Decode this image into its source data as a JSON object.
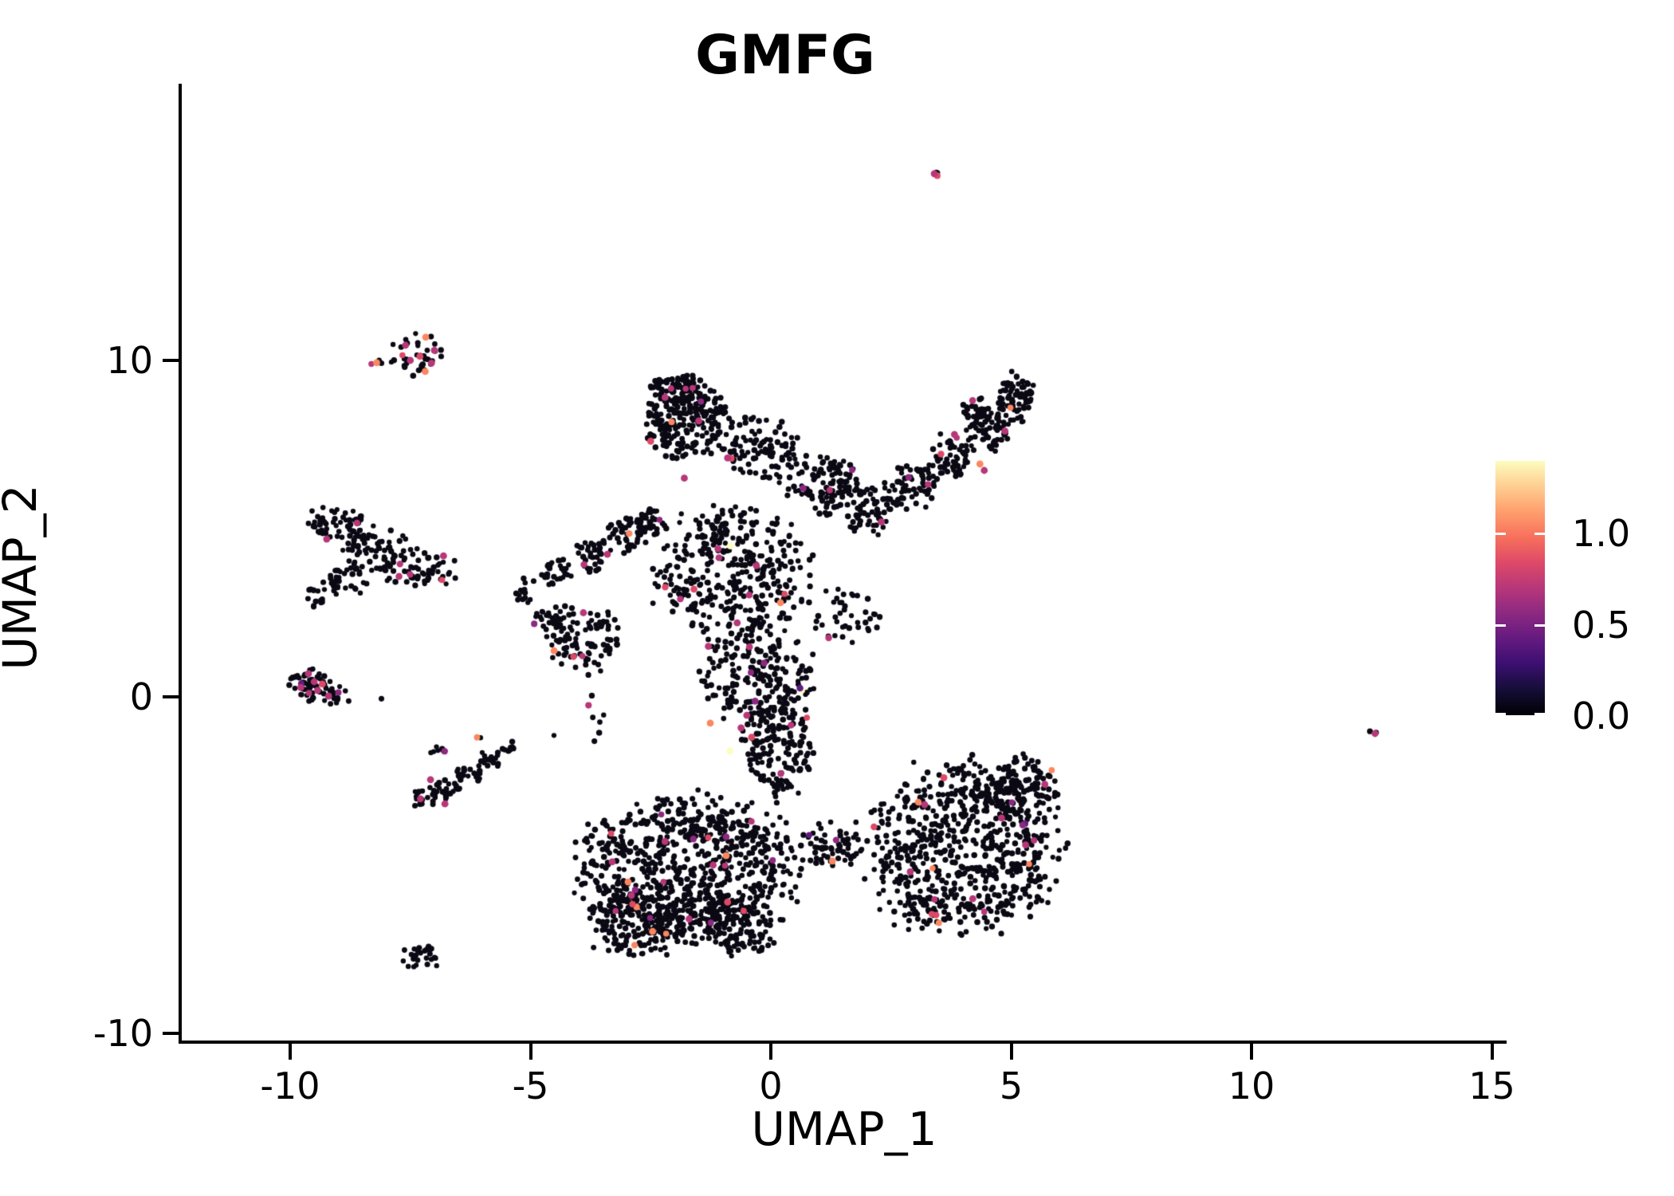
{
  "figure": {
    "background": "#ffffff"
  },
  "chart_data": {
    "type": "scatter",
    "title": "GMFG",
    "xlabel": "UMAP_1",
    "ylabel": "UMAP_2",
    "x_ticks": {
      "values": [
        -10,
        -5,
        0,
        5,
        10,
        15
      ],
      "labels": [
        "-10",
        "-5",
        "0",
        "5",
        "10",
        "15"
      ]
    },
    "y_ticks": {
      "values": [
        10,
        0,
        -10
      ],
      "labels": [
        "10",
        "0",
        "-10"
      ]
    },
    "x_range": [
      -12.3,
      15.3
    ],
    "y_range": [
      -10.2,
      18.2
    ],
    "grid": false,
    "point_color": "#0b0913",
    "colored_fraction": 0.022,
    "colored_palette": [
      {
        "color": "#b73779",
        "weight": 0.45
      },
      {
        "color": "#8c2981",
        "weight": 0.18
      },
      {
        "color": "#de4968",
        "weight": 0.14
      },
      {
        "color": "#fb8761",
        "weight": 0.14
      },
      {
        "color": "#641a80",
        "weight": 0.06
      },
      {
        "color": "#fcfdbf",
        "weight": 0.03
      }
    ],
    "clusters": [
      {
        "name": "top-speck",
        "cx": 3.44,
        "cy": 15.5,
        "rx": 0.09,
        "ry": 0.1,
        "n": 3
      },
      {
        "name": "topleft-main",
        "cx": -7.38,
        "cy": 10.2,
        "rx": 0.5,
        "ry": 0.6,
        "n": 34
      },
      {
        "name": "topleft-west",
        "cx": -8.2,
        "cy": 9.93,
        "rx": 0.12,
        "ry": 0.1,
        "n": 3
      },
      {
        "name": "leftmid-a",
        "cx": -9.07,
        "cy": 5.19,
        "rx": 0.6,
        "ry": 0.52,
        "n": 50
      },
      {
        "name": "leftmid-b",
        "cx": -8.24,
        "cy": 4.36,
        "rx": 0.78,
        "ry": 0.66,
        "n": 70
      },
      {
        "name": "leftmid-c",
        "cx": -7.41,
        "cy": 3.77,
        "rx": 0.78,
        "ry": 0.6,
        "n": 60
      },
      {
        "name": "leftmid-d",
        "cx": -8.9,
        "cy": 3.41,
        "rx": 0.45,
        "ry": 0.45,
        "n": 28
      },
      {
        "name": "leftmid-tail",
        "cx": -9.49,
        "cy": 2.99,
        "rx": 0.27,
        "ry": 0.3,
        "n": 14
      },
      {
        "name": "left-zero",
        "cx": -9.65,
        "cy": 0.33,
        "rx": 0.45,
        "ry": 0.45,
        "n": 48
      },
      {
        "name": "left-zero-e",
        "cx": -8.99,
        "cy": 0.05,
        "rx": 0.32,
        "ry": 0.26,
        "n": 14
      },
      {
        "name": "left-zero-dot",
        "cx": -8.12,
        "cy": -0.09,
        "rx": 0.05,
        "ry": 0.05,
        "n": 1
      },
      {
        "name": "lowleft-a",
        "cx": -7.24,
        "cy": -2.99,
        "rx": 0.28,
        "ry": 0.28,
        "n": 18
      },
      {
        "name": "lowleft-b",
        "cx": -6.74,
        "cy": -2.75,
        "rx": 0.33,
        "ry": 0.3,
        "n": 24
      },
      {
        "name": "lowleft-c",
        "cx": -6.25,
        "cy": -2.27,
        "rx": 0.3,
        "ry": 0.3,
        "n": 20
      },
      {
        "name": "lowleft-d",
        "cx": -5.83,
        "cy": -1.8,
        "rx": 0.26,
        "ry": 0.26,
        "n": 16
      },
      {
        "name": "lowleft-e",
        "cx": -5.47,
        "cy": -1.47,
        "rx": 0.19,
        "ry": 0.19,
        "n": 9
      },
      {
        "name": "lowleft-sat",
        "cx": -6.94,
        "cy": -1.59,
        "rx": 0.15,
        "ry": 0.14,
        "n": 7
      },
      {
        "name": "lowleft-dots",
        "cx": -6.05,
        "cy": -1.21,
        "rx": 0.12,
        "ry": 0.08,
        "n": 2
      },
      {
        "name": "bottom-tiny",
        "cx": -7.19,
        "cy": -7.73,
        "rx": 0.5,
        "ry": 0.34,
        "n": 26
      },
      {
        "name": "right-speck",
        "cx": 12.5,
        "cy": -1.0,
        "rx": 0.1,
        "ry": 0.12,
        "n": 2
      },
      {
        "name": "knob",
        "cx": -1.76,
        "cy": 8.27,
        "rx": 0.78,
        "ry": 1.15,
        "n": 240
      },
      {
        "name": "knob-top",
        "cx": -2.01,
        "cy": 9.15,
        "rx": 0.52,
        "ry": 0.38,
        "n": 50
      },
      {
        "name": "knob-east",
        "cx": -0.27,
        "cy": 7.44,
        "rx": 0.78,
        "ry": 0.97,
        "n": 95
      },
      {
        "name": "bridge",
        "cx": 1.06,
        "cy": 6.26,
        "rx": 0.85,
        "ry": 0.85,
        "n": 110
      },
      {
        "name": "wing-a",
        "cx": 2.06,
        "cy": 5.55,
        "rx": 0.52,
        "ry": 0.72,
        "n": 55
      },
      {
        "name": "wing-b",
        "cx": 2.89,
        "cy": 6.26,
        "rx": 0.52,
        "ry": 0.72,
        "n": 60
      },
      {
        "name": "wing-c",
        "cx": 3.72,
        "cy": 7.09,
        "rx": 0.49,
        "ry": 0.68,
        "n": 60
      },
      {
        "name": "wing-d",
        "cx": 4.55,
        "cy": 7.91,
        "rx": 0.44,
        "ry": 0.62,
        "n": 60
      },
      {
        "name": "wing-tip",
        "cx": 5.08,
        "cy": 8.93,
        "rx": 0.38,
        "ry": 0.68,
        "n": 70
      },
      {
        "name": "wing-top",
        "cx": 4.3,
        "cy": 8.5,
        "rx": 0.32,
        "ry": 0.42,
        "n": 26
      },
      {
        "name": "arm-a",
        "cx": -5.08,
        "cy": 3.18,
        "rx": 0.27,
        "ry": 0.37,
        "n": 14
      },
      {
        "name": "arm-b",
        "cx": -4.42,
        "cy": 3.65,
        "rx": 0.35,
        "ry": 0.47,
        "n": 30
      },
      {
        "name": "arm-c",
        "cx": -3.67,
        "cy": 4.24,
        "rx": 0.39,
        "ry": 0.52,
        "n": 36
      },
      {
        "name": "arm-d",
        "cx": -2.96,
        "cy": 4.83,
        "rx": 0.39,
        "ry": 0.52,
        "n": 42
      },
      {
        "name": "arm-e",
        "cx": -2.46,
        "cy": 5.19,
        "rx": 0.35,
        "ry": 0.47,
        "n": 36
      },
      {
        "name": "west-lobe",
        "cx": -3.92,
        "cy": 1.75,
        "rx": 0.78,
        "ry": 0.97,
        "n": 90
      },
      {
        "name": "west-lobe-n",
        "cx": -4.58,
        "cy": 2.27,
        "rx": 0.35,
        "ry": 0.47,
        "n": 24
      },
      {
        "name": "central",
        "cx": -0.76,
        "cy": 3.65,
        "rx": 1.55,
        "ry": 1.95,
        "n": 380
      },
      {
        "name": "central-south",
        "cx": -0.27,
        "cy": 0.57,
        "rx": 1.2,
        "ry": 1.2,
        "n": 190
      },
      {
        "name": "column",
        "cx": 0.15,
        "cy": -1.45,
        "rx": 0.68,
        "ry": 1.35,
        "n": 160
      },
      {
        "name": "bl-mass",
        "cx": -1.76,
        "cy": -5.12,
        "rx": 2.2,
        "ry": 2.05,
        "n": 760
      },
      {
        "name": "bl-south",
        "cx": -2.76,
        "cy": -6.78,
        "rx": 1.05,
        "ry": 0.97,
        "n": 160
      },
      {
        "name": "bl-southeast",
        "cx": -0.76,
        "cy": -6.78,
        "rx": 0.85,
        "ry": 0.85,
        "n": 110
      },
      {
        "name": "neck",
        "cx": 1.23,
        "cy": -4.41,
        "rx": 0.68,
        "ry": 0.6,
        "n": 60
      },
      {
        "name": "br-mass",
        "cx": 3.89,
        "cy": -4.53,
        "rx": 1.95,
        "ry": 2.4,
        "n": 680
      },
      {
        "name": "br-north",
        "cx": 5.22,
        "cy": -2.75,
        "rx": 0.68,
        "ry": 0.97,
        "n": 110
      },
      {
        "name": "mid-east",
        "cx": 1.56,
        "cy": 2.46,
        "rx": 0.68,
        "ry": 0.97,
        "n": 40
      },
      {
        "name": "sparse-west-gap",
        "cx": -3.9,
        "cy": -0.6,
        "rx": 0.7,
        "ry": 0.8,
        "n": 8
      },
      {
        "name": "sparse-south-gap",
        "cx": 0.3,
        "cy": -3.3,
        "rx": 0.9,
        "ry": 0.7,
        "n": 10
      }
    ],
    "highlight_points": [
      {
        "x": 3.4,
        "y": 15.55,
        "color": "#b73779"
      },
      {
        "x": -8.2,
        "y": 9.93,
        "color": "#fb8761"
      },
      {
        "x": -7.18,
        "y": 10.69,
        "color": "#fb8761"
      },
      {
        "x": -7.19,
        "y": 9.67,
        "color": "#fb8761"
      },
      {
        "x": -7.6,
        "y": 10.45,
        "color": "#b73779"
      },
      {
        "x": -7.0,
        "y": 10.3,
        "color": "#b73779"
      },
      {
        "x": -7.5,
        "y": 10.0,
        "color": "#b73779"
      },
      {
        "x": -7.06,
        "y": 9.92,
        "color": "#b73779"
      },
      {
        "x": -7.3,
        "y": 10.12,
        "color": "#de4968"
      },
      {
        "x": -9.24,
        "y": 4.69,
        "color": "#b73779"
      },
      {
        "x": -6.81,
        "y": 4.19,
        "color": "#b73779"
      },
      {
        "x": -9.62,
        "y": 0.69,
        "color": "#b73779"
      },
      {
        "x": -9.5,
        "y": 0.45,
        "color": "#b73779"
      },
      {
        "x": -9.78,
        "y": 0.28,
        "color": "#b73779"
      },
      {
        "x": -9.43,
        "y": 0.19,
        "color": "#b73779"
      },
      {
        "x": -9.2,
        "y": 0.02,
        "color": "#b73779"
      },
      {
        "x": -9.33,
        "y": 0.38,
        "color": "#de4968"
      },
      {
        "x": -7.08,
        "y": -2.46,
        "color": "#b73779"
      },
      {
        "x": -7.29,
        "y": -3.03,
        "color": "#b73779"
      },
      {
        "x": -6.78,
        "y": -3.18,
        "color": "#b73779"
      },
      {
        "x": 12.57,
        "y": -1.09,
        "color": "#b73779"
      },
      {
        "x": 4.35,
        "y": 6.92,
        "color": "#fb8761"
      },
      {
        "x": 3.82,
        "y": 7.8,
        "color": "#b73779"
      },
      {
        "x": 4.87,
        "y": 7.9,
        "color": "#b73779"
      },
      {
        "x": 4.44,
        "y": 6.73,
        "color": "#b73779"
      },
      {
        "x": 2.3,
        "y": 5.2,
        "color": "#b73779"
      },
      {
        "x": -2.2,
        "y": 8.9,
        "color": "#b73779"
      },
      {
        "x": -1.5,
        "y": 8.2,
        "color": "#b73779"
      },
      {
        "x": -2.5,
        "y": 7.6,
        "color": "#de4968"
      },
      {
        "x": -0.9,
        "y": 7.1,
        "color": "#b73779"
      },
      {
        "x": -1.8,
        "y": 6.5,
        "color": "#b73779"
      },
      {
        "x": -1.1,
        "y": 4.4,
        "color": "#b73779"
      },
      {
        "x": -0.3,
        "y": 3.9,
        "color": "#b73779"
      },
      {
        "x": -1.6,
        "y": 3.2,
        "color": "#de4968"
      },
      {
        "x": 0.2,
        "y": 2.8,
        "color": "#fb8761"
      },
      {
        "x": -0.7,
        "y": 2.2,
        "color": "#b73779"
      },
      {
        "x": -1.3,
        "y": 1.5,
        "color": "#b73779"
      },
      {
        "x": -4.51,
        "y": 1.37,
        "color": "#fb8761"
      },
      {
        "x": -3.9,
        "y": 2.5,
        "color": "#b73779"
      },
      {
        "x": -3.4,
        "y": 4.24,
        "color": "#b73779"
      },
      {
        "x": -0.85,
        "y": -1.61,
        "color": "#fcfdbf"
      },
      {
        "x": -1.26,
        "y": -0.78,
        "color": "#fb8761"
      },
      {
        "x": -0.5,
        "y": -0.55,
        "color": "#b73779"
      },
      {
        "x": -0.62,
        "y": -0.92,
        "color": "#b73779"
      },
      {
        "x": -0.4,
        "y": -1.2,
        "color": "#de4968"
      },
      {
        "x": -2.97,
        "y": -5.5,
        "color": "#fb8761"
      },
      {
        "x": -2.46,
        "y": -6.97,
        "color": "#fb8761"
      },
      {
        "x": -2.2,
        "y": -4.3,
        "color": "#b73779"
      },
      {
        "x": -1.2,
        "y": -5.0,
        "color": "#b73779"
      },
      {
        "x": -2.9,
        "y": -5.9,
        "color": "#b73779"
      },
      {
        "x": -0.9,
        "y": -6.1,
        "color": "#de4968"
      },
      {
        "x": -1.7,
        "y": -6.6,
        "color": "#b73779"
      },
      {
        "x": -3.3,
        "y": -4.9,
        "color": "#b73779"
      },
      {
        "x": -0.93,
        "y": -4.72,
        "color": "#fb8761"
      },
      {
        "x": 1.28,
        "y": -4.88,
        "color": "#fb8761"
      },
      {
        "x": 3.2,
        "y": -3.2,
        "color": "#b73779"
      },
      {
        "x": 4.8,
        "y": -3.6,
        "color": "#b73779"
      },
      {
        "x": 2.9,
        "y": -5.2,
        "color": "#b73779"
      },
      {
        "x": 4.2,
        "y": -6.0,
        "color": "#b73779"
      },
      {
        "x": 5.3,
        "y": -4.4,
        "color": "#b73779"
      },
      {
        "x": 3.6,
        "y": -2.4,
        "color": "#de4968"
      },
      {
        "x": 5.7,
        "y": -2.6,
        "color": "#b73779"
      }
    ],
    "legend": {
      "position": "right",
      "labels": [
        "1.0",
        "0.5",
        "0.0"
      ],
      "values": [
        1.0,
        0.5,
        0.0
      ],
      "max_value": 1.39,
      "colormap": "magma",
      "gradient_stops": [
        "#000004",
        "#140e36",
        "#3b0f70",
        "#641a80",
        "#8c2981",
        "#b73779",
        "#de4968",
        "#f7705c",
        "#fe9f6d",
        "#fece91",
        "#fcfdbf"
      ]
    }
  }
}
